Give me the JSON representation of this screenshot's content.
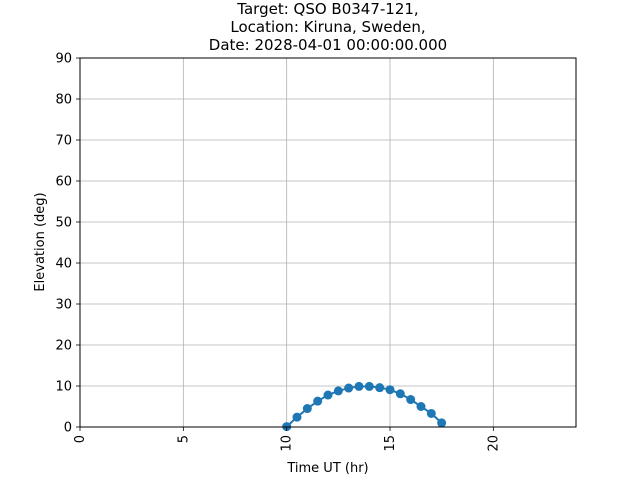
{
  "chart_data": {
    "type": "line",
    "title": [
      "Target: QSO B0347-121,",
      "Location: Kiruna, Sweden,",
      "Date: 2028-04-01 00:00:00.000"
    ],
    "xlabel": "Time UT (hr)",
    "ylabel": "Elevation (deg)",
    "xlim": [
      0,
      24
    ],
    "ylim": [
      0,
      90
    ],
    "xticks": [
      0,
      5,
      10,
      15,
      20
    ],
    "yticks": [
      0,
      10,
      20,
      30,
      40,
      50,
      60,
      70,
      80,
      90
    ],
    "grid": true,
    "series": [
      {
        "color": "#1f77b4",
        "marker": "circle",
        "x": [
          10.0,
          10.5,
          11.0,
          11.5,
          12.0,
          12.5,
          13.0,
          13.5,
          14.0,
          14.5,
          15.0,
          15.5,
          16.0,
          16.5,
          17.0,
          17.5
        ],
        "y": [
          0.1,
          2.4,
          4.5,
          6.3,
          7.8,
          8.8,
          9.5,
          9.9,
          9.9,
          9.6,
          9.1,
          8.1,
          6.7,
          5.0,
          3.3,
          1.0
        ]
      }
    ]
  }
}
